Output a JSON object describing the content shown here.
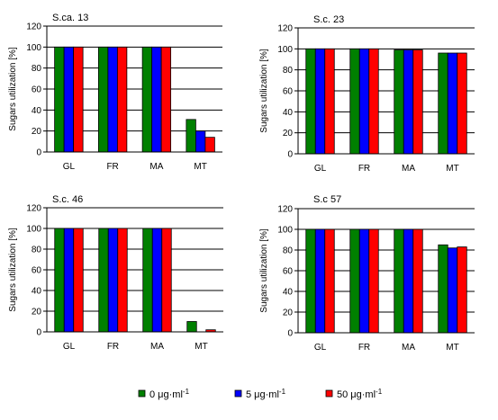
{
  "legend": {
    "entries": [
      {
        "label": "0 μg·ml",
        "sup": "-1",
        "color": "#008000"
      },
      {
        "label": "5 μg·ml",
        "sup": "-1",
        "color": "#0000ff"
      },
      {
        "label": "50  μg·ml",
        "sup": "-1",
        "color": "#ff0000"
      }
    ]
  },
  "chart_data": [
    {
      "type": "bar",
      "title": "S.ca. 13",
      "ylabel": "Sugars utilization [%]",
      "xlabel": "",
      "categories": [
        "GL",
        "FR",
        "MA",
        "MT"
      ],
      "ylim": [
        0,
        120
      ],
      "yticks": [
        0,
        20,
        40,
        60,
        80,
        100,
        120
      ],
      "grid": true,
      "series": [
        {
          "name": "0 μg·ml-1",
          "values": [
            100,
            100,
            100,
            31
          ]
        },
        {
          "name": "5 μg·ml-1",
          "values": [
            100,
            100,
            100,
            20
          ]
        },
        {
          "name": "50  μg·ml-1",
          "values": [
            100,
            100,
            100,
            14
          ]
        }
      ]
    },
    {
      "type": "bar",
      "title": "S.c. 23",
      "ylabel": "Sugars utilization [%]",
      "xlabel": "",
      "categories": [
        "GL",
        "FR",
        "MA",
        "MT"
      ],
      "ylim": [
        0,
        120
      ],
      "yticks": [
        0,
        20,
        40,
        60,
        80,
        100,
        120
      ],
      "grid": true,
      "series": [
        {
          "name": "0 μg·ml-1",
          "values": [
            100,
            100,
            99,
            96
          ]
        },
        {
          "name": "5 μg·ml-1",
          "values": [
            100,
            100,
            99,
            96
          ]
        },
        {
          "name": "50  μg·ml-1",
          "values": [
            100,
            100,
            99,
            96
          ]
        }
      ]
    },
    {
      "type": "bar",
      "title": "S.c. 46",
      "ylabel": "Sugars utilization [%]",
      "xlabel": "",
      "categories": [
        "GL",
        "FR",
        "MA",
        "MT"
      ],
      "ylim": [
        0,
        120
      ],
      "yticks": [
        0,
        20,
        40,
        60,
        80,
        100,
        120
      ],
      "grid": true,
      "series": [
        {
          "name": "0 μg·ml-1",
          "values": [
            100,
            100,
            100,
            10
          ]
        },
        {
          "name": "5 μg·ml-1",
          "values": [
            100,
            100,
            100,
            0
          ]
        },
        {
          "name": "50  μg·ml-1",
          "values": [
            100,
            100,
            100,
            2
          ]
        }
      ]
    },
    {
      "type": "bar",
      "title": "S.c 57",
      "ylabel": "Sugars utilization [%]",
      "xlabel": "",
      "categories": [
        "GL",
        "FR",
        "MA",
        "MT"
      ],
      "ylim": [
        0,
        120
      ],
      "yticks": [
        0,
        20,
        40,
        60,
        80,
        100,
        120
      ],
      "grid": true,
      "series": [
        {
          "name": "0 μg·ml-1",
          "values": [
            100,
            100,
            100,
            85
          ]
        },
        {
          "name": "5 μg·ml-1",
          "values": [
            100,
            100,
            100,
            82
          ]
        },
        {
          "name": "50  μg·ml-1",
          "values": [
            100,
            100,
            100,
            83
          ]
        }
      ]
    }
  ]
}
